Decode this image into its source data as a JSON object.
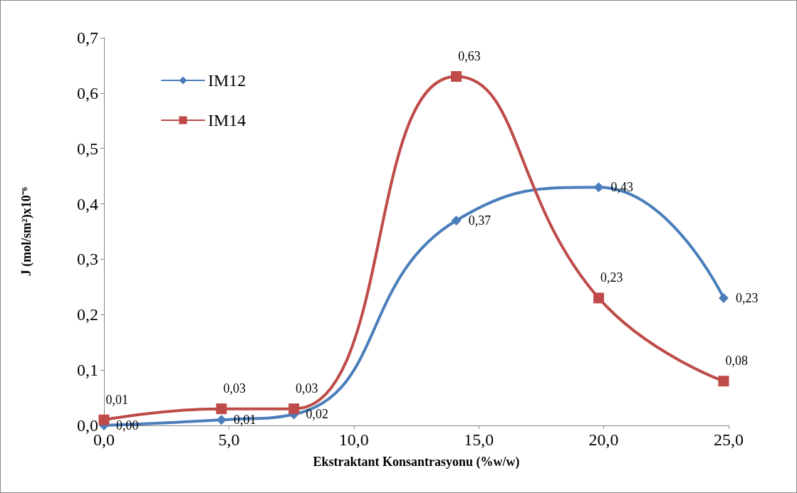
{
  "chart_data": {
    "type": "line",
    "xlabel": "Ekstraktant Konsantrasyonu (%w/w)",
    "ylabel": "J (mol/sm²)x10⁻⁶",
    "x": [
      0,
      4.7,
      7.6,
      14.1,
      19.8,
      24.8
    ],
    "series": [
      {
        "name": "IM12",
        "color": "#4a7ebb",
        "marker": "diamond",
        "values": [
          0.0,
          0.01,
          0.02,
          0.37,
          0.43,
          0.23
        ],
        "value_labels": [
          "0,00",
          "0,01",
          "0,02",
          "0,37",
          "0,43",
          "0,23"
        ]
      },
      {
        "name": "IM14",
        "color": "#be4b48",
        "marker": "square",
        "values": [
          0.01,
          0.03,
          0.03,
          0.63,
          0.23,
          0.08
        ],
        "value_labels": [
          "0,01",
          "0,03",
          "0,03",
          "0,63",
          "0,23",
          "0,08"
        ]
      }
    ],
    "xlim": [
      0,
      25
    ],
    "xticks": [
      {
        "value": 0,
        "label": "0,0"
      },
      {
        "value": 5,
        "label": "5,0"
      },
      {
        "value": 10,
        "label": "10,0"
      },
      {
        "value": 15,
        "label": "15,0"
      },
      {
        "value": 20,
        "label": "20,0"
      },
      {
        "value": 25,
        "label": "25,0"
      }
    ],
    "ylim": [
      0,
      0.7
    ],
    "yticks": [
      {
        "value": 0,
        "label": "0,0"
      },
      {
        "value": 0.1,
        "label": "0,1"
      },
      {
        "value": 0.2,
        "label": "0,2"
      },
      {
        "value": 0.3,
        "label": "0,3"
      },
      {
        "value": 0.4,
        "label": "0,4"
      },
      {
        "value": 0.5,
        "label": "0,5"
      },
      {
        "value": 0.6,
        "label": "0,6"
      },
      {
        "value": 0.7,
        "label": "0,7"
      }
    ],
    "grid": false,
    "legend": "top left"
  }
}
